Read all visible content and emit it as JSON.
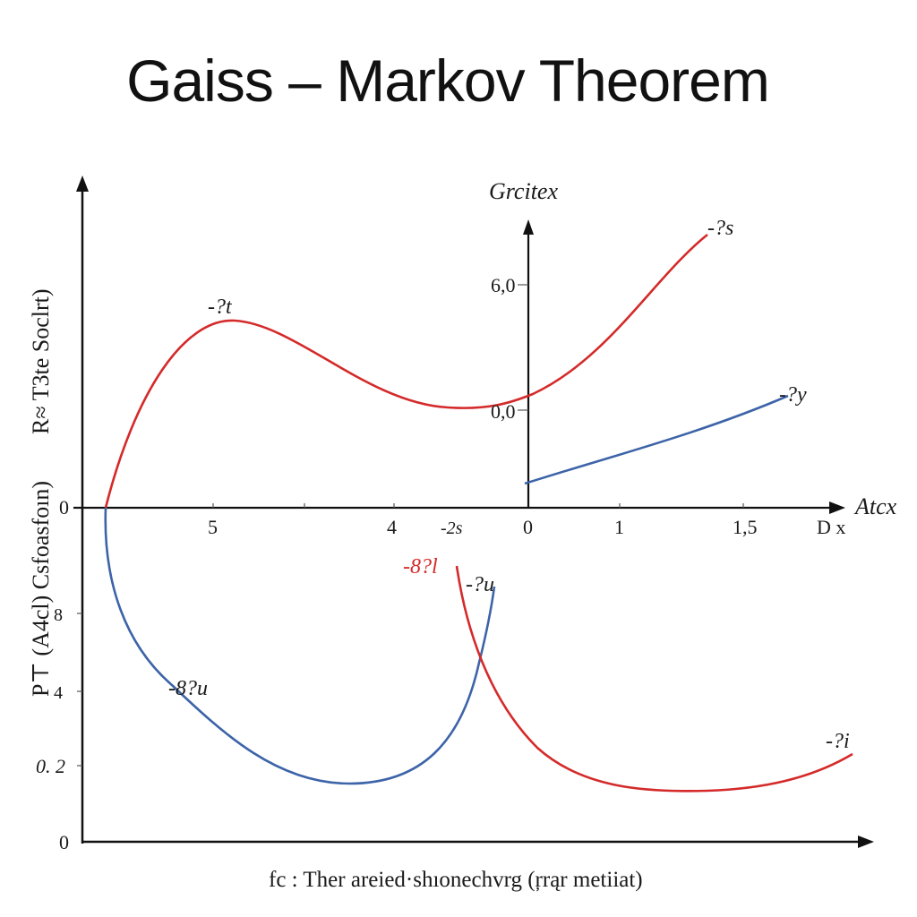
{
  "chart_data": {
    "type": "line",
    "title": "Gaiss – Markov Theorem",
    "ylabel_top": "R≈ T3te Soclrt)",
    "ylabel_bottom": "P⊤ (A4cl) Csfoasfoın)",
    "inner_axis_label": "Grcitex",
    "x_axis_label": "Atcx",
    "x_axis_label_2": "D x",
    "footer_caption": "fc : Ther areied·shıonechvrg (ŗrąr metiiat)",
    "x_ticks": [
      "5",
      "4",
      "-2s",
      "0",
      "1",
      "1,5"
    ],
    "upper_y_ticks": [
      "6,0",
      "0,0"
    ],
    "lower_y_ticks": [
      "0",
      "8",
      "4",
      "0. 2",
      "0"
    ],
    "series": [
      {
        "name": "-?t",
        "color": "#d42a2a"
      },
      {
        "name": "-?s",
        "color": "#d42a2a"
      },
      {
        "name": "-?y",
        "color": "#3d64a8"
      },
      {
        "name": "-8?u",
        "color": "#3d64a8"
      },
      {
        "name": "-8?l",
        "color": "#d42a2a"
      },
      {
        "name": "-?u",
        "color": "#3d64a8"
      },
      {
        "name": "-?i",
        "color": "#d42a2a"
      }
    ],
    "colors": {
      "red": "#d42a2a",
      "blue": "#3d64a8",
      "axis": "#111111"
    }
  }
}
